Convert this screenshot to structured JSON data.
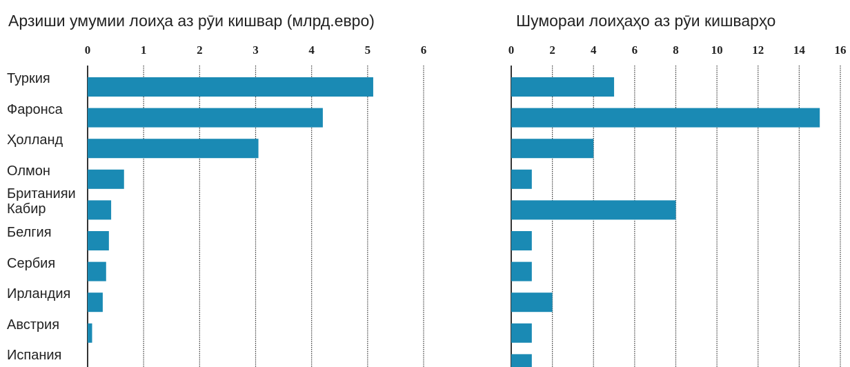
{
  "chart_data": [
    {
      "type": "bar",
      "orientation": "horizontal",
      "title": "Арзиши умумии лоиҳа аз рӯи кишвар (млрд.евро)",
      "categories": [
        "Туркия",
        "Фаронса",
        "Ҳолланд",
        "Олмон",
        "Британияи Кабир",
        "Белгия",
        "Сербия",
        "Ирландия",
        "Австрия",
        "Испания"
      ],
      "values": [
        5.1,
        4.2,
        3.05,
        0.65,
        0.42,
        0.38,
        0.33,
        0.27,
        0.08,
        0
      ],
      "color": "#1a8ab4",
      "xlim": [
        0,
        6
      ],
      "xticks": [
        0,
        1,
        2,
        3,
        4,
        5,
        6
      ],
      "grid": true
    },
    {
      "type": "bar",
      "orientation": "horizontal",
      "title": "Шумораи лоиҳаҳо аз рӯи кишварҳо",
      "values": [
        5,
        15,
        4,
        1,
        8,
        1,
        1,
        2,
        1,
        1
      ],
      "color": "#1a8ab4",
      "xlim": [
        0,
        16
      ],
      "xticks": [
        0,
        2,
        4,
        6,
        8,
        10,
        12,
        14,
        16
      ],
      "grid": true
    }
  ]
}
